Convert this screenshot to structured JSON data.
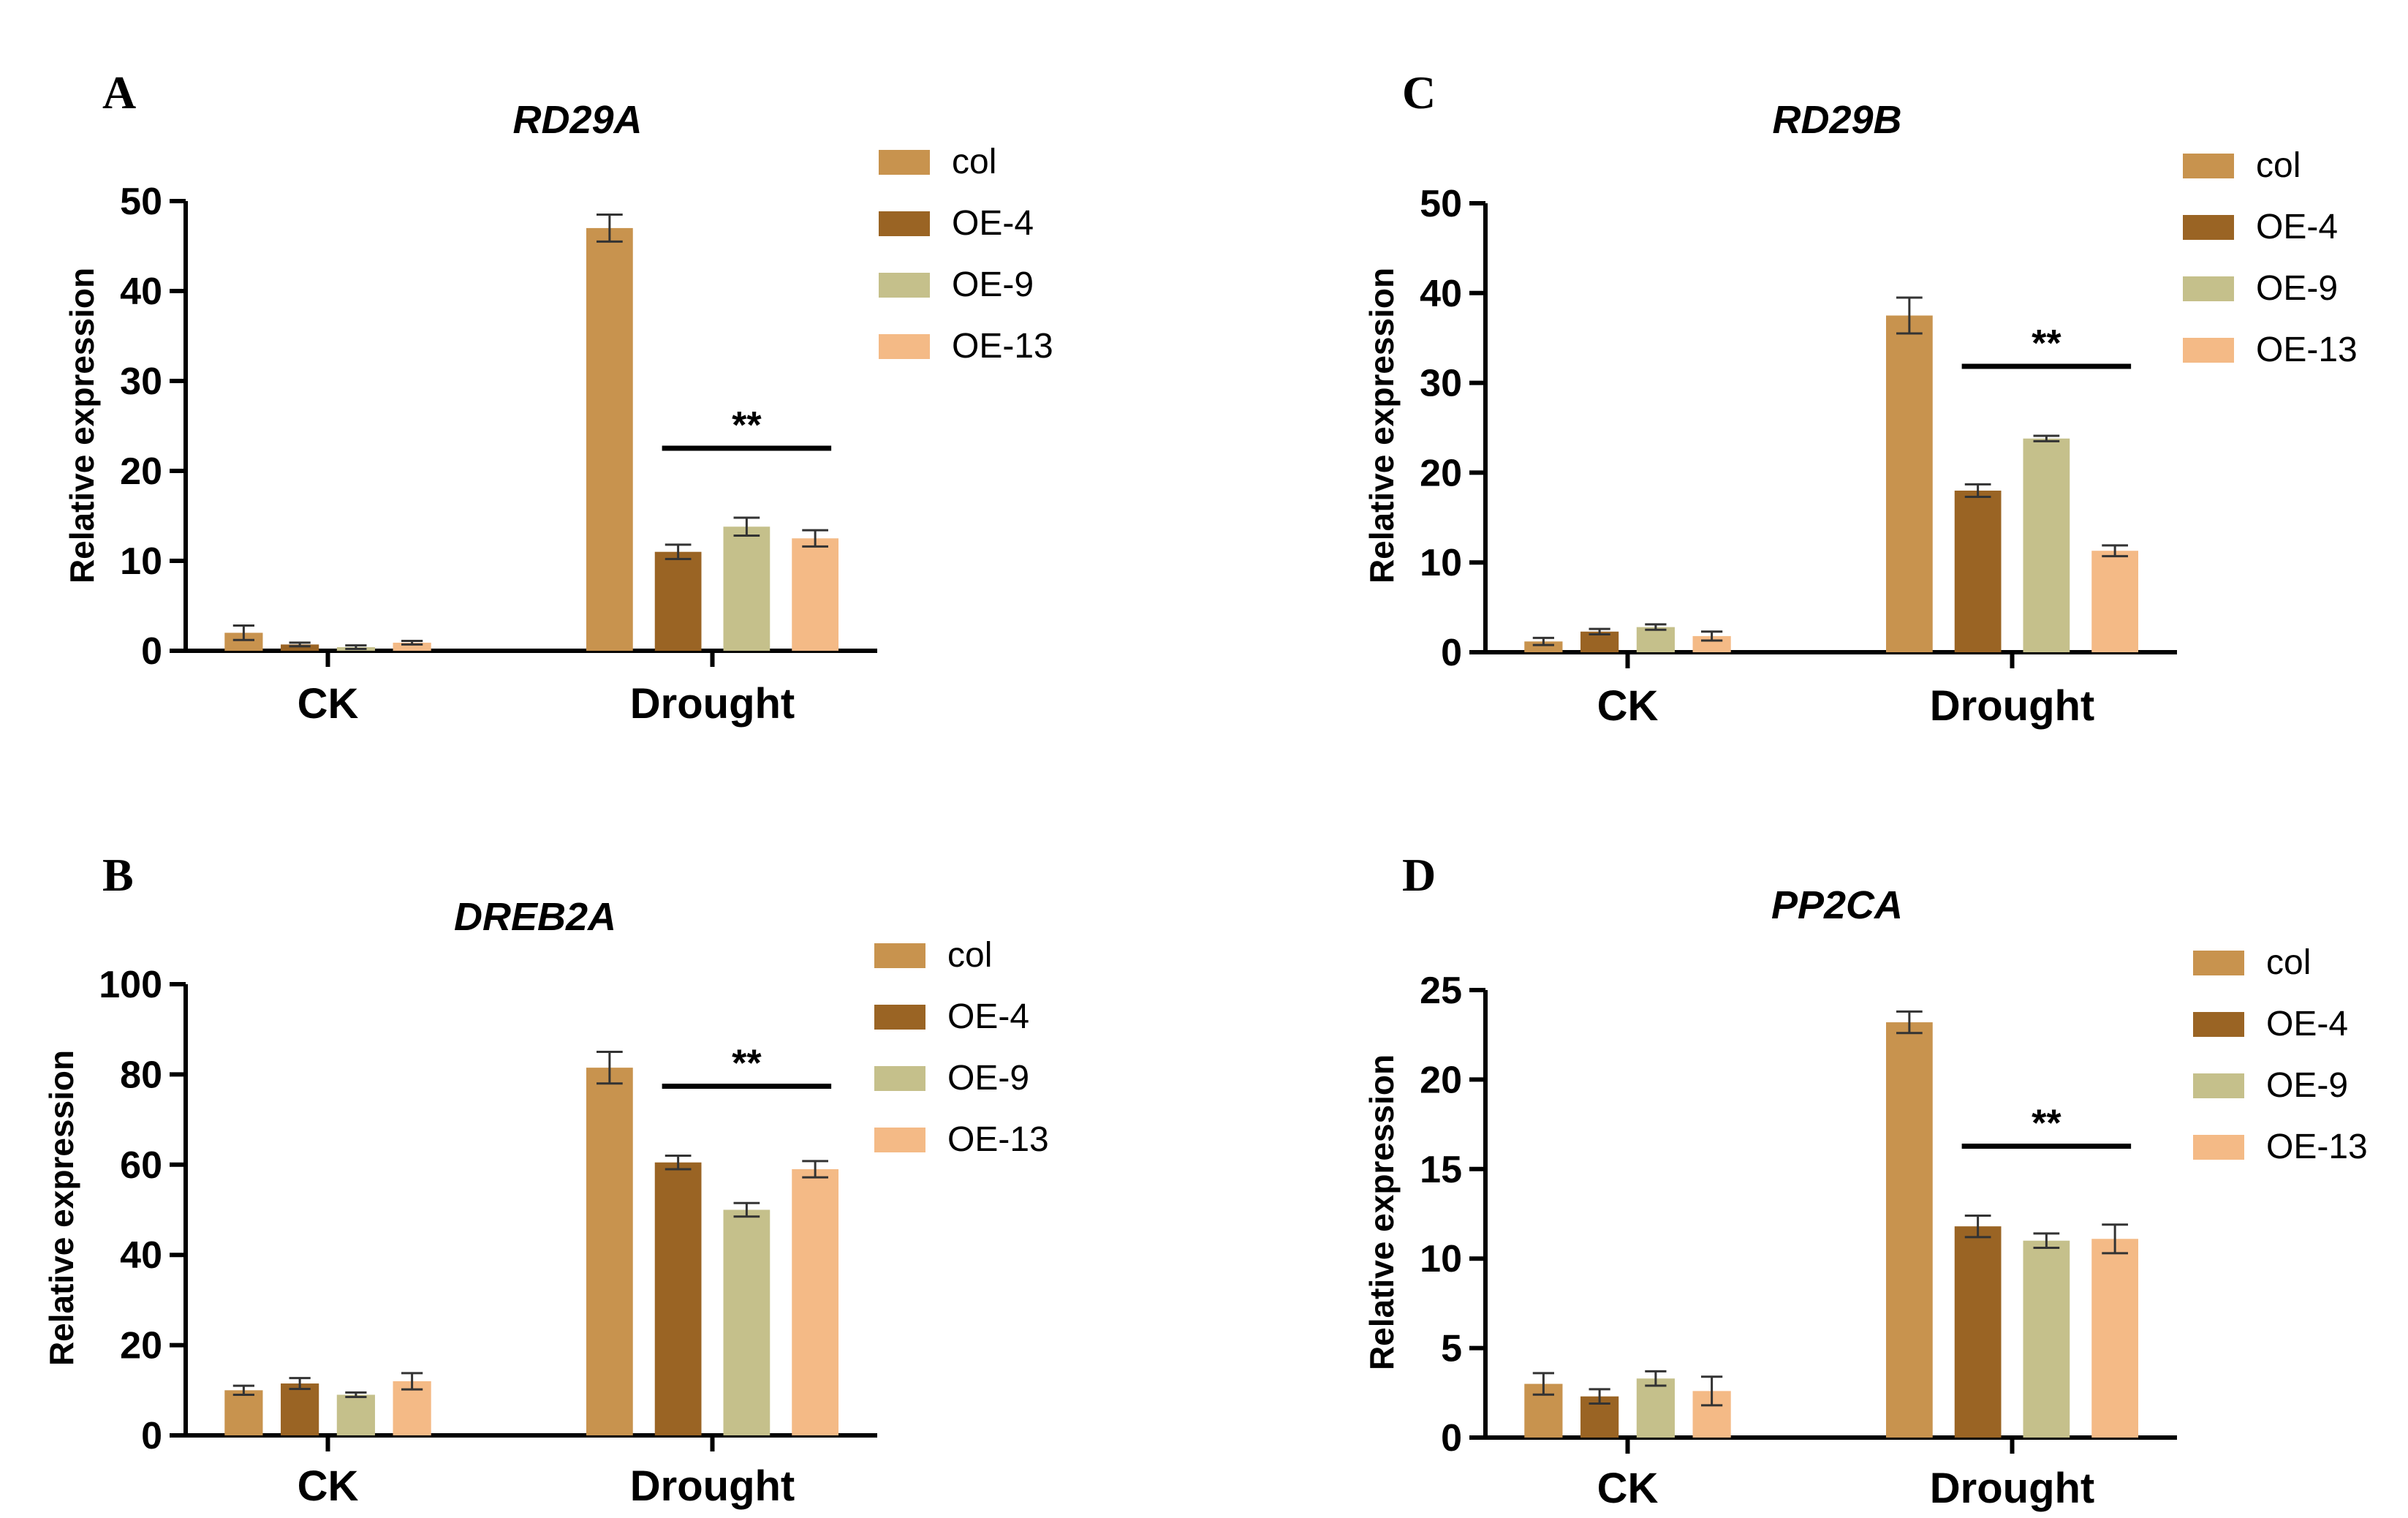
{
  "colors": {
    "col": "#C8934E",
    "OE-4": "#9A6424",
    "OE-9": "#C5C08B",
    "OE-13": "#F4BA86",
    "axis": "#000000"
  },
  "chart_data": [
    {
      "panel": "A",
      "type": "bar",
      "title": "RD29A",
      "ylabel": "Relative expression",
      "xlabel": "",
      "ylim": [
        0,
        50
      ],
      "yticks": [
        "0",
        "10",
        "20",
        "30",
        "40",
        "50"
      ],
      "categories": [
        "CK",
        "Drought"
      ],
      "series": [
        {
          "name": "col",
          "values": [
            2.0,
            47.0
          ],
          "errors": [
            0.8,
            1.5
          ]
        },
        {
          "name": "OE-4",
          "values": [
            0.7,
            11.0
          ],
          "errors": [
            0.2,
            0.8
          ]
        },
        {
          "name": "OE-9",
          "values": [
            0.4,
            13.8
          ],
          "errors": [
            0.2,
            1.0
          ]
        },
        {
          "name": "OE-13",
          "values": [
            0.9,
            12.5
          ],
          "errors": [
            0.2,
            0.9
          ]
        }
      ],
      "significance": {
        "label": "**",
        "category": "Drought",
        "from_series": "OE-4",
        "to_series": "OE-13"
      },
      "legend": "top-right"
    },
    {
      "panel": "C",
      "type": "bar",
      "title": "RD29B",
      "ylabel": "Relative expression",
      "xlabel": "",
      "ylim": [
        0,
        50
      ],
      "yticks": [
        "0",
        "10",
        "20",
        "30",
        "40",
        "50"
      ],
      "categories": [
        "CK",
        "Drought"
      ],
      "series": [
        {
          "name": "col",
          "values": [
            1.2,
            37.5
          ],
          "errors": [
            0.4,
            2.0
          ]
        },
        {
          "name": "OE-4",
          "values": [
            2.3,
            18.0
          ],
          "errors": [
            0.3,
            0.7
          ]
        },
        {
          "name": "OE-9",
          "values": [
            2.8,
            23.8
          ],
          "errors": [
            0.3,
            0.3
          ]
        },
        {
          "name": "OE-13",
          "values": [
            1.8,
            11.3
          ],
          "errors": [
            0.5,
            0.6
          ]
        }
      ],
      "significance": {
        "label": "**",
        "category": "Drought",
        "from_series": "OE-4",
        "to_series": "OE-13"
      },
      "legend": "top-right"
    },
    {
      "panel": "B",
      "type": "bar",
      "title": "DREB2A",
      "ylabel": "Relative expression",
      "xlabel": "",
      "ylim": [
        0,
        100
      ],
      "yticks": [
        "0",
        "20",
        "40",
        "60",
        "80",
        "100"
      ],
      "categories": [
        "CK",
        "Drought"
      ],
      "series": [
        {
          "name": "col",
          "values": [
            10.0,
            81.5
          ],
          "errors": [
            1.0,
            3.5
          ]
        },
        {
          "name": "OE-4",
          "values": [
            11.5,
            60.5
          ],
          "errors": [
            1.2,
            1.5
          ]
        },
        {
          "name": "OE-9",
          "values": [
            9.0,
            50.0
          ],
          "errors": [
            0.5,
            1.5
          ]
        },
        {
          "name": "OE-13",
          "values": [
            12.0,
            59.0
          ],
          "errors": [
            1.8,
            1.8
          ]
        }
      ],
      "significance": {
        "label": "**",
        "category": "Drought",
        "from_series": "OE-4",
        "to_series": "OE-13"
      },
      "legend": "top-right"
    },
    {
      "panel": "D",
      "type": "bar",
      "title": "PP2CA",
      "ylabel": "Relative expression",
      "xlabel": "",
      "ylim": [
        0,
        25
      ],
      "yticks": [
        "0",
        "5",
        "10",
        "15",
        "20",
        "25"
      ],
      "categories": [
        "CK",
        "Drought"
      ],
      "series": [
        {
          "name": "col",
          "values": [
            3.0,
            23.2
          ],
          "errors": [
            0.6,
            0.6
          ]
        },
        {
          "name": "OE-4",
          "values": [
            2.3,
            11.8
          ],
          "errors": [
            0.4,
            0.6
          ]
        },
        {
          "name": "OE-9",
          "values": [
            3.3,
            11.0
          ],
          "errors": [
            0.4,
            0.4
          ]
        },
        {
          "name": "OE-13",
          "values": [
            2.6,
            11.1
          ],
          "errors": [
            0.8,
            0.8
          ]
        }
      ],
      "significance": {
        "label": "**",
        "category": "Drought",
        "from_series": "OE-4",
        "to_series": "OE-13"
      },
      "legend": "top-right"
    }
  ]
}
